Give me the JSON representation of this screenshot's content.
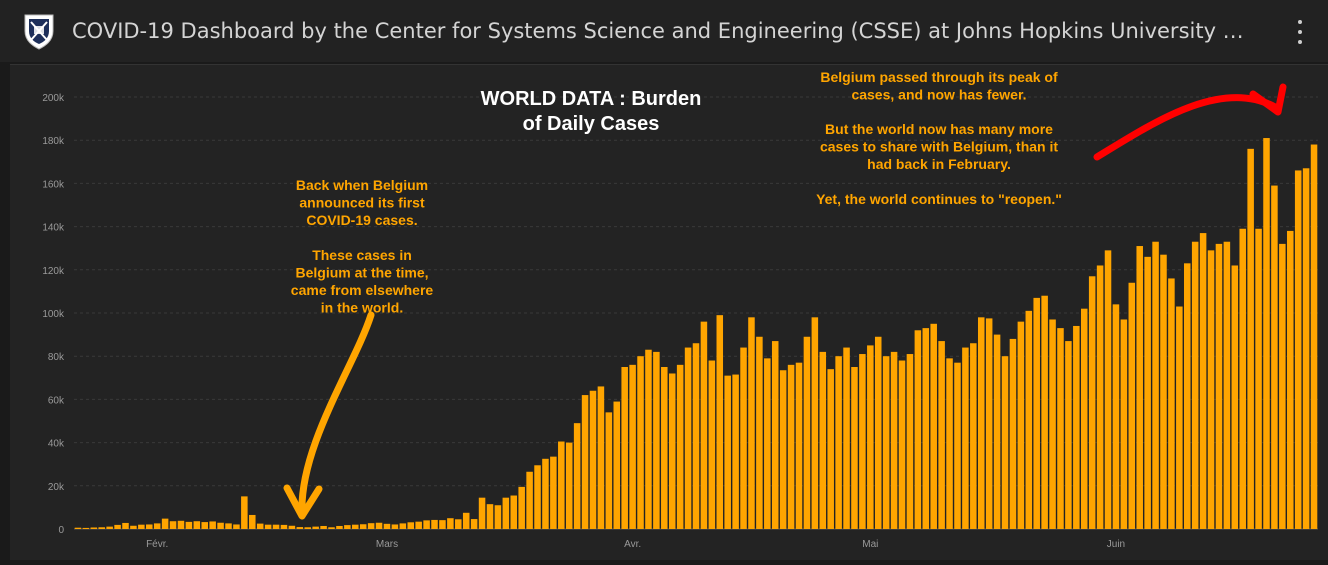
{
  "header": {
    "title": "COVID-19 Dashboard by the Center for Systems Science and Engineering (CSSE) at Johns Hopkins University …",
    "logo_icon": "university-shield-icon",
    "menu_icon": "more-vertical-icon"
  },
  "colors": {
    "background": "#1a1a1a",
    "panel": "#232323",
    "bar": "#ffa500",
    "annotation": "#ffa500",
    "arrow_red": "#ff0000",
    "axis_text": "#9a9a9a"
  },
  "annotations": {
    "chart_title": [
      "WORLD DATA : Burden",
      "of Daily Cases"
    ],
    "belgium_early": [
      "Back when Belgium",
      "announced its first",
      "COVID-19 cases.",
      "",
      "These cases in",
      "Belgium at the time,",
      "came from elsewhere",
      "in the world."
    ],
    "belgium_peak": [
      "Belgium passed through its peak of",
      "cases, and now has fewer.",
      "",
      "But the world now has many more",
      "cases to share with Belgium, than it",
      "had back in February.",
      "",
      "Yet, the world continues to \"reopen.\""
    ]
  },
  "chart_data": {
    "type": "bar",
    "title": "",
    "xlabel": "",
    "ylabel": "",
    "ylim": [
      0,
      200000
    ],
    "grid": true,
    "y_ticks": [
      "0",
      "20k",
      "40k",
      "60k",
      "80k",
      "100k",
      "120k",
      "140k",
      "160k",
      "180k",
      "200k"
    ],
    "x_ticks": [
      {
        "label": "Févr.",
        "index": 10
      },
      {
        "label": "Mars",
        "index": 39
      },
      {
        "label": "Avr.",
        "index": 70
      },
      {
        "label": "Mai",
        "index": 100
      },
      {
        "label": "Juin",
        "index": 131
      }
    ],
    "start_date": "2020-01-22",
    "values": [
      600,
      500,
      700,
      800,
      1100,
      1900,
      2800,
      1500,
      2000,
      2100,
      2600,
      4800,
      3600,
      3800,
      3300,
      3600,
      3200,
      3500,
      2900,
      2600,
      2100,
      15100,
      6500,
      2500,
      2000,
      2000,
      1900,
      1500,
      900,
      800,
      1100,
      1400,
      800,
      1400,
      1800,
      2000,
      2200,
      2700,
      2900,
      2400,
      2100,
      2600,
      3100,
      3400,
      4000,
      4200,
      4100,
      5000,
      4500,
      7500,
      4600,
      14500,
      11500,
      11000,
      14500,
      15500,
      19500,
      26500,
      29500,
      32500,
      33500,
      40500,
      40000,
      49000,
      62000,
      64000,
      66000,
      54000,
      59000,
      75000,
      76000,
      80000,
      83000,
      82000,
      75000,
      72000,
      76000,
      84000,
      86000,
      96000,
      78000,
      99000,
      71000,
      71500,
      84000,
      98000,
      89000,
      79000,
      87000,
      73500,
      76000,
      77000,
      89000,
      98000,
      82000,
      74000,
      80000,
      84000,
      75000,
      81000,
      85000,
      89000,
      80000,
      82000,
      78000,
      81000,
      92000,
      93000,
      95000,
      87000,
      79000,
      77000,
      84000,
      86000,
      98000,
      97500,
      90000,
      80000,
      88000,
      96000,
      101000,
      107000,
      108000,
      97000,
      93000,
      87000,
      94000,
      102000,
      117000,
      122000,
      129000,
      104000,
      97000,
      114000,
      131000,
      126000,
      133000,
      127000,
      116000,
      103000,
      123000,
      133000,
      137000,
      129000,
      132000,
      133000,
      122000,
      139000,
      176000,
      139000,
      181000,
      159000,
      132000,
      138000,
      166000,
      167000,
      178000
    ]
  }
}
